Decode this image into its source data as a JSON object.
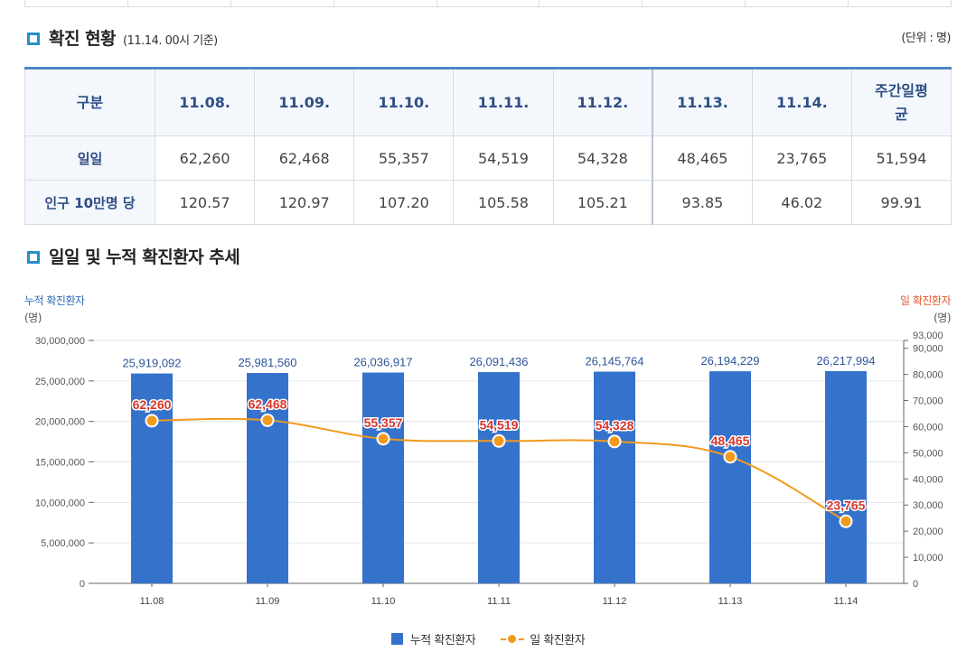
{
  "status_section": {
    "title": "확진 현황",
    "subtitle": "(11.14. 00시 기준)",
    "unit_note": "(단위 : 명)",
    "table": {
      "headers": [
        "구분",
        "11.08.",
        "11.09.",
        "11.10.",
        "11.11.",
        "11.12.",
        "11.13.",
        "11.14.",
        "주간일평균"
      ],
      "rows": [
        {
          "label": "일일",
          "values": [
            "62,260",
            "62,468",
            "55,357",
            "54,519",
            "54,328",
            "48,465",
            "23,765",
            "51,594"
          ]
        },
        {
          "label": "인구 10만명 당",
          "values": [
            "120.57",
            "120.97",
            "107.20",
            "105.58",
            "105.21",
            "93.85",
            "46.02",
            "99.91"
          ]
        }
      ]
    }
  },
  "trend_section": {
    "title": "일일 및 누적 확진환자 추세",
    "left_axis_title": "누적 확진환자",
    "left_axis_unit": "(명)",
    "right_axis_title": "일 확진환자",
    "right_axis_unit": "(명)",
    "legend": {
      "bar": "누적 확진환자",
      "line": "일 확진환자"
    }
  },
  "chart_data": {
    "type": "bar",
    "categories": [
      "11.08",
      "11.09",
      "11.10",
      "11.11",
      "11.12",
      "11.13",
      "11.14"
    ],
    "series": [
      {
        "name": "누적 확진환자",
        "type": "bar",
        "axis": "left",
        "values": [
          25919092,
          25981560,
          26036917,
          26091436,
          26145764,
          26194229,
          26217994
        ],
        "labels": [
          "25,919,092",
          "25,981,560",
          "26,036,917",
          "26,091,436",
          "26,145,764",
          "26,194,229",
          "26,217,994"
        ]
      },
      {
        "name": "일 확진환자",
        "type": "line",
        "axis": "right",
        "values": [
          62260,
          62468,
          55357,
          54519,
          54328,
          48465,
          23765
        ],
        "labels": [
          "62,260",
          "62,468",
          "55,357",
          "54,519",
          "54,328",
          "48,465",
          "23,765"
        ]
      }
    ],
    "left_axis": {
      "ylim": [
        0,
        30000000
      ],
      "ticks": [
        0,
        5000000,
        10000000,
        15000000,
        20000000,
        25000000,
        30000000
      ],
      "tick_labels": [
        "0",
        "5,000,000",
        "10,000,000",
        "15,000,000",
        "20,000,000",
        "25,000,000",
        "30,000,000"
      ]
    },
    "right_axis": {
      "ylim": [
        0,
        93000
      ],
      "ticks": [
        0,
        10000,
        20000,
        30000,
        40000,
        50000,
        60000,
        70000,
        80000,
        90000,
        93000
      ],
      "tick_labels": [
        "0",
        "10,000",
        "20,000",
        "30,000",
        "40,000",
        "50,000",
        "60,000",
        "70,000",
        "80,000",
        "90,000",
        "93,000"
      ]
    },
    "colors": {
      "bar": "#3572cc",
      "line": "#f29a1e",
      "line_label": "#d9362b",
      "bar_label": "#2f5597"
    }
  }
}
